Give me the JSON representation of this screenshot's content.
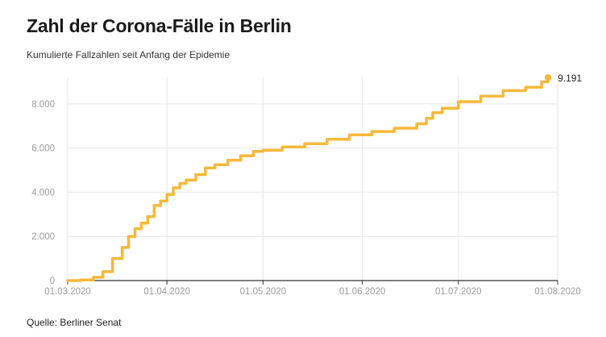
{
  "title": "Zahl der Corona-Fälle in Berlin",
  "subtitle": "Kumulierte Fallzahlen seit Anfang der Epidemie",
  "source": "Quelle: Berliner Senat",
  "chart_data": {
    "type": "line",
    "series": [
      {
        "color": "#f6b93b",
        "x": [
          "2020-03-01",
          "2020-03-05",
          "2020-03-09",
          "2020-03-12",
          "2020-03-15",
          "2020-03-18",
          "2020-03-20",
          "2020-03-22",
          "2020-03-24",
          "2020-03-26",
          "2020-03-28",
          "2020-03-30",
          "2020-04-01",
          "2020-04-03",
          "2020-04-05",
          "2020-04-07",
          "2020-04-10",
          "2020-04-13",
          "2020-04-16",
          "2020-04-20",
          "2020-04-24",
          "2020-04-28",
          "2020-05-01",
          "2020-05-07",
          "2020-05-14",
          "2020-05-21",
          "2020-05-28",
          "2020-06-04",
          "2020-06-11",
          "2020-06-18",
          "2020-06-21",
          "2020-06-23",
          "2020-06-26",
          "2020-07-01",
          "2020-07-08",
          "2020-07-15",
          "2020-07-22",
          "2020-07-27",
          "2020-07-29"
        ],
        "y": [
          0,
          30,
          150,
          400,
          1000,
          1500,
          2000,
          2350,
          2600,
          2900,
          3400,
          3600,
          3900,
          4200,
          4400,
          4550,
          4800,
          5100,
          5250,
          5450,
          5650,
          5850,
          5900,
          6050,
          6200,
          6400,
          6600,
          6750,
          6900,
          7100,
          7350,
          7600,
          7800,
          8100,
          8350,
          8600,
          8750,
          9000,
          9191
        ]
      }
    ],
    "end_label": "9.191",
    "xticks": [
      "01.03.2020",
      "01.04.2020",
      "01.05.2020",
      "01.06.2020",
      "01.07.2020",
      "01.08.2020"
    ],
    "xtick_dates": [
      "2020-03-01",
      "2020-04-01",
      "2020-05-01",
      "2020-06-01",
      "2020-07-01",
      "2020-08-01"
    ],
    "yticks": [
      "0",
      "2.000",
      "4.000",
      "6.000",
      "8.000"
    ],
    "ytick_values": [
      0,
      2000,
      4000,
      6000,
      8000
    ],
    "xlim": [
      "2020-03-01",
      "2020-08-01"
    ],
    "ylim": [
      0,
      9200
    ],
    "grid": true
  }
}
